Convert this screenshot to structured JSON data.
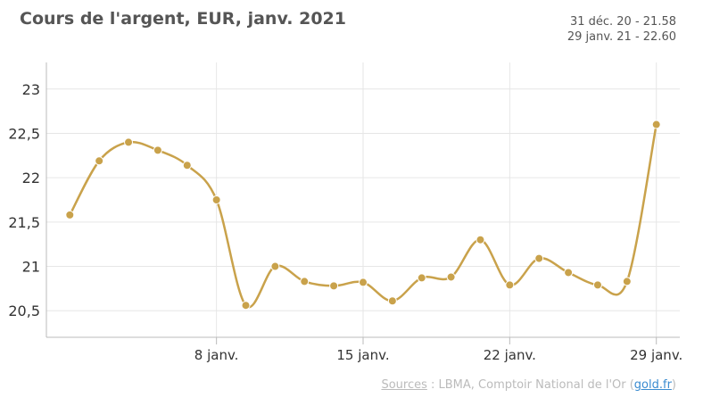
{
  "chart_data": {
    "type": "line",
    "title": "Cours de l'argent, EUR, janv. 2021",
    "info_lines": [
      "31 déc. 20 - 21.58",
      "29 janv. 21 - 22.60"
    ],
    "x": [
      1,
      2,
      3,
      4,
      5,
      6,
      7,
      8,
      9,
      10,
      11,
      12,
      13,
      14,
      15,
      16,
      17,
      18,
      19,
      20,
      21
    ],
    "values": [
      21.58,
      22.19,
      22.4,
      22.31,
      22.14,
      21.75,
      20.56,
      21.0,
      20.83,
      20.78,
      20.82,
      20.61,
      20.87,
      20.88,
      21.3,
      20.79,
      21.09,
      20.93,
      20.79,
      20.83,
      22.6
    ],
    "y_ticks": [
      20.5,
      21,
      21.5,
      22,
      22.5,
      23
    ],
    "y_tick_labels": [
      "20,5",
      "21",
      "21,5",
      "22",
      "22,5",
      "23"
    ],
    "ylim": [
      20.2,
      23.3
    ],
    "x_ticks": [
      6,
      11,
      16,
      21
    ],
    "x_tick_labels": [
      "8 janv.",
      "15 janv.",
      "22 janv.",
      "29 janv."
    ],
    "xlim": [
      0.2,
      21.8
    ],
    "grid": true,
    "line_color": "#c9a24b"
  },
  "sources": {
    "label": "Sources",
    "text": " : LBMA, Comptoir National de l'Or (",
    "link": "gold.fr",
    "end": ")"
  }
}
